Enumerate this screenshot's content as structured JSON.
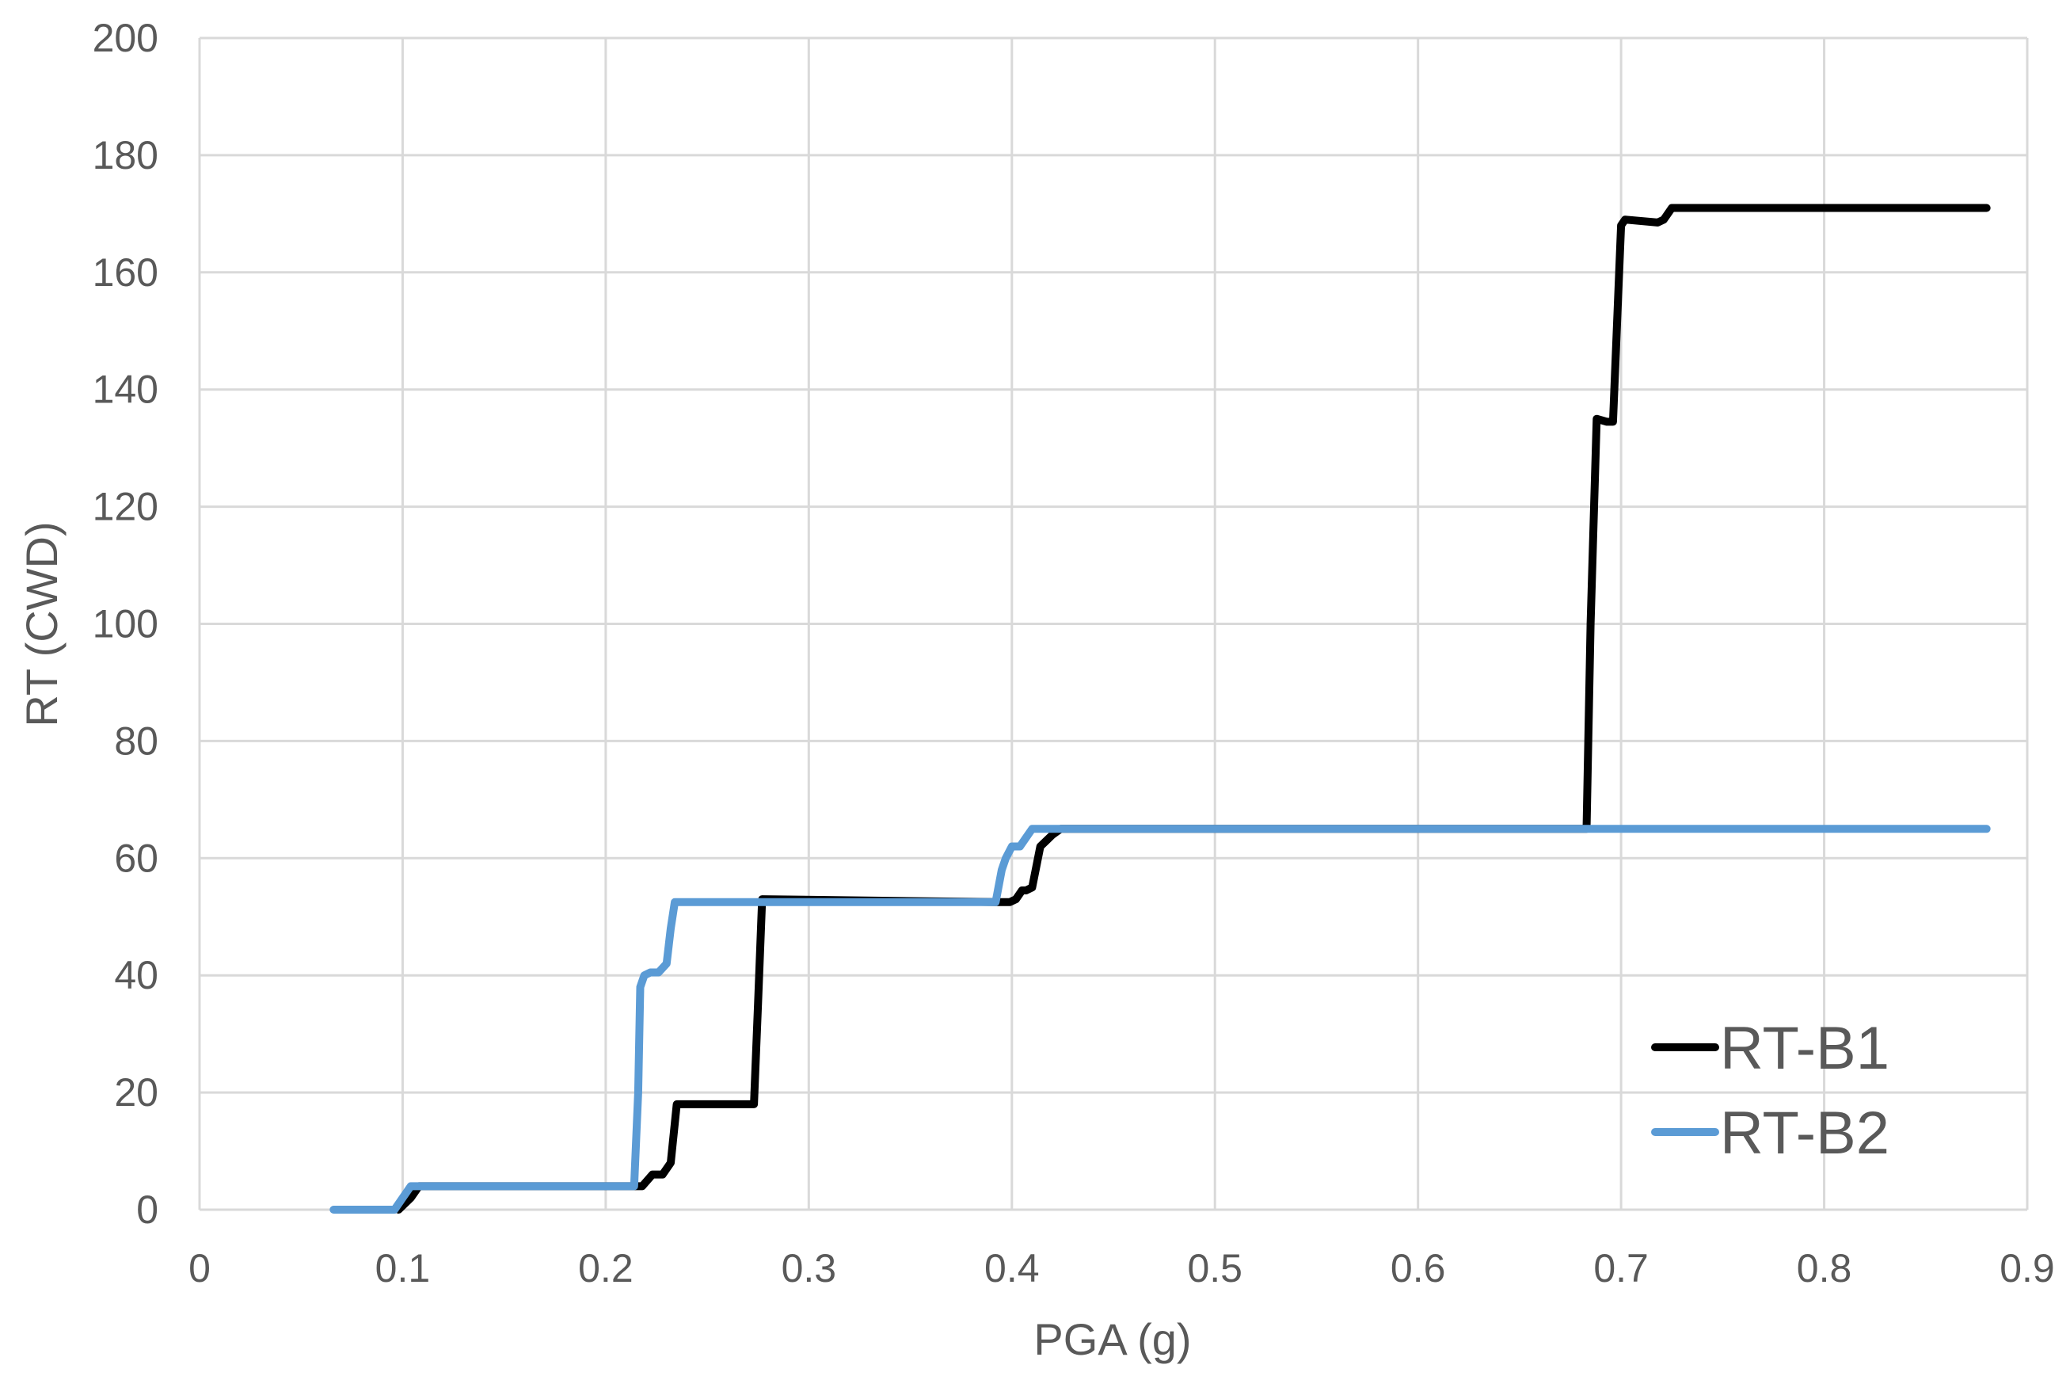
{
  "chart_data": {
    "type": "line",
    "title": "",
    "xlabel": "PGA (g)",
    "ylabel": "RT (CWD)",
    "xlim": [
      0,
      0.9
    ],
    "ylim": [
      0,
      200
    ],
    "x_ticks": [
      0,
      0.1,
      0.2,
      0.3,
      0.4,
      0.5,
      0.6,
      0.7,
      0.8,
      0.9
    ],
    "x_tick_labels": [
      "0",
      "0.1",
      "0.2",
      "0.3",
      "0.4",
      "0.5",
      "0.6",
      "0.7",
      "0.8",
      "0.9"
    ],
    "y_ticks": [
      0,
      20,
      40,
      60,
      80,
      100,
      120,
      140,
      160,
      180,
      200
    ],
    "y_tick_labels": [
      "0",
      "20",
      "40",
      "60",
      "80",
      "100",
      "120",
      "140",
      "160",
      "180",
      "200"
    ],
    "grid": true,
    "legend_position": "bottom-right",
    "series": [
      {
        "name": "RT-B1",
        "color": "#000000",
        "x": [
          0.098,
          0.104,
          0.108,
          0.213,
          0.218,
          0.223,
          0.228,
          0.232,
          0.235,
          0.271,
          0.273,
          0.275,
          0.277,
          0.393,
          0.399,
          0.402,
          0.405,
          0.407,
          0.41,
          0.414,
          0.417,
          0.42,
          0.424,
          0.428,
          0.683,
          0.685,
          0.688,
          0.693,
          0.696,
          0.7,
          0.702,
          0.718,
          0.721,
          0.725,
          0.88
        ],
        "y": [
          0,
          2,
          4,
          4,
          4,
          6,
          6,
          8,
          18,
          18,
          18,
          35,
          53,
          52.5,
          52.5,
          53,
          54.5,
          54.5,
          55,
          62,
          63,
          64,
          65,
          65,
          65,
          100,
          135,
          134.5,
          134.5,
          168,
          169,
          168.5,
          169,
          171,
          171
        ]
      },
      {
        "name": "RT-B2",
        "color": "#5b9bd5",
        "x": [
          0.066,
          0.096,
          0.1,
          0.104,
          0.214,
          0.216,
          0.217,
          0.219,
          0.222,
          0.226,
          0.23,
          0.232,
          0.234,
          0.392,
          0.395,
          0.397,
          0.4,
          0.402,
          0.404,
          0.407,
          0.41,
          0.88
        ],
        "y": [
          0,
          0,
          2,
          4,
          4,
          20,
          38,
          40,
          40.5,
          40.5,
          42,
          48,
          52.5,
          52.5,
          58,
          60,
          62,
          62,
          62,
          63.5,
          65,
          65
        ]
      }
    ]
  }
}
